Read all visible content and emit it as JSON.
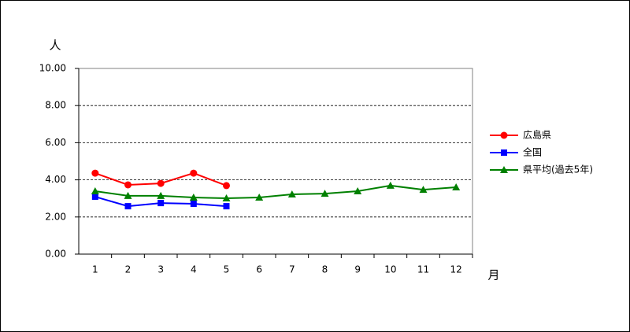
{
  "chart_data": {
    "type": "line",
    "y_label": "人",
    "x_label": "月",
    "categories": [
      "1",
      "2",
      "3",
      "4",
      "5",
      "6",
      "7",
      "8",
      "9",
      "10",
      "11",
      "12"
    ],
    "series": [
      {
        "name": "広島県",
        "color": "#ff0000",
        "marker": "circle",
        "values": [
          4.36,
          3.73,
          3.81,
          4.36,
          3.69,
          null,
          null,
          null,
          null,
          null,
          null,
          null
        ]
      },
      {
        "name": "全国",
        "color": "#0000ff",
        "marker": "square",
        "values": [
          3.09,
          2.58,
          2.75,
          2.71,
          2.58,
          null,
          null,
          null,
          null,
          null,
          null,
          null
        ]
      },
      {
        "name": "県平均(過去5年)",
        "color": "#008000",
        "marker": "triangle",
        "values": [
          3.39,
          3.14,
          3.14,
          3.05,
          3.01,
          3.05,
          3.22,
          3.26,
          3.39,
          3.69,
          3.47,
          3.6
        ]
      }
    ],
    "ylim": [
      0,
      10
    ],
    "yticks": [
      {
        "value": 0,
        "label": "0.00"
      },
      {
        "value": 2,
        "label": "2.00"
      },
      {
        "value": 4,
        "label": "4.00"
      },
      {
        "value": 6,
        "label": "6.00"
      },
      {
        "value": 8,
        "label": "8.00"
      },
      {
        "value": 10,
        "label": "10.00"
      }
    ],
    "grid": true,
    "legend": "right"
  }
}
